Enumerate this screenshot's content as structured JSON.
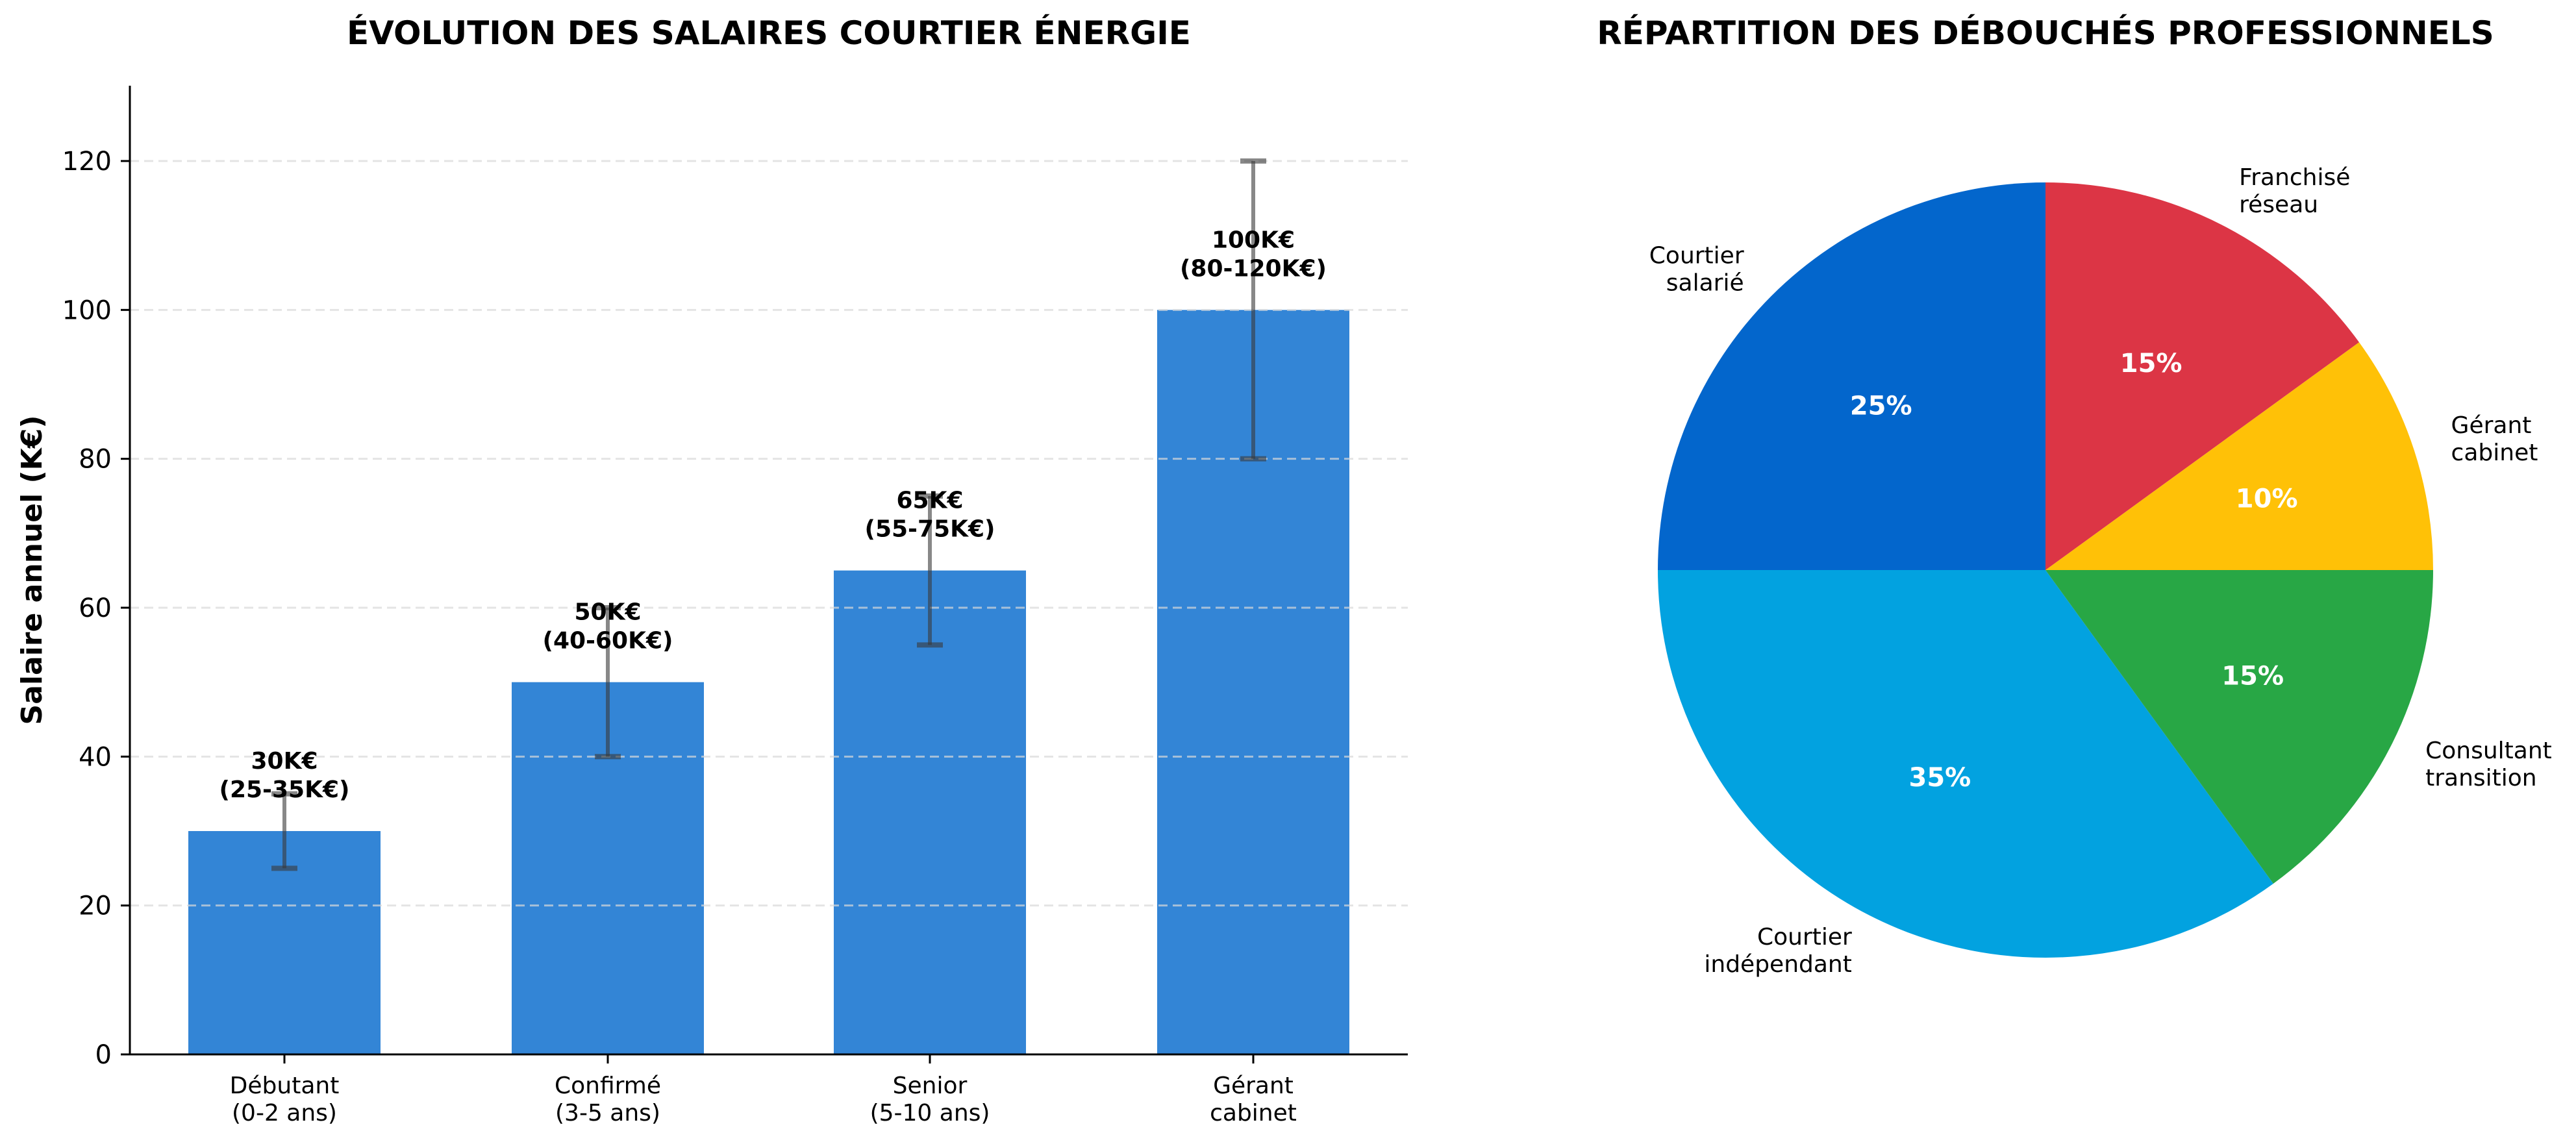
{
  "chart_data": [
    {
      "type": "bar",
      "title": "ÉVOLUTION DES SALAIRES COURTIER ÉNERGIE",
      "xlabel": "",
      "ylabel": "Salaire annuel (K€)",
      "ylim": [
        0,
        130
      ],
      "yticks": [
        "0",
        "20",
        "40",
        "60",
        "80",
        "100",
        "120"
      ],
      "grid": "horizontal dashed",
      "categories": [
        "Débutant\n(0-2 ans)",
        "Confirmé\n(3-5 ans)",
        "Senior\n(5-10 ans)",
        "Gérant\ncabinet"
      ],
      "category_lines": [
        [
          "Débutant",
          "(0-2 ans)"
        ],
        [
          "Confirmé",
          "(3-5 ans)"
        ],
        [
          "Senior",
          "(5-10 ans)"
        ],
        [
          "Gérant",
          "cabinet"
        ]
      ],
      "values": [
        30,
        50,
        65,
        100
      ],
      "error_low": [
        25,
        40,
        55,
        80
      ],
      "error_high": [
        35,
        60,
        75,
        120
      ],
      "annotations": [
        [
          "30K€",
          "(25-35K€)"
        ],
        [
          "50K€",
          "(40-60K€)"
        ],
        [
          "65K€",
          "(55-75K€)"
        ],
        [
          "100K€",
          "(80-120K€)"
        ]
      ],
      "bar_color": "#3385d6"
    },
    {
      "type": "pie",
      "title": "RÉPARTITION DES DÉBOUCHÉS PROFESSIONNELS",
      "labels": [
        "Courtier salarié",
        "Courtier indépendant",
        "Consultant transition",
        "Gérant cabinet",
        "Franchisé réseau"
      ],
      "label_lines": [
        [
          "Courtier",
          "salarié"
        ],
        [
          "Courtier",
          "indépendant"
        ],
        [
          "Consultant",
          "transition"
        ],
        [
          "Gérant",
          "cabinet"
        ],
        [
          "Franchisé",
          "réseau"
        ]
      ],
      "values": [
        25,
        35,
        15,
        10,
        15
      ],
      "pct_labels": [
        "25%",
        "35%",
        "15%",
        "10%",
        "15%"
      ],
      "colors": [
        "#0366cc",
        "#02a2e0",
        "#28a745",
        "#ffc107",
        "#dc3545"
      ],
      "start_angle": 90
    }
  ]
}
